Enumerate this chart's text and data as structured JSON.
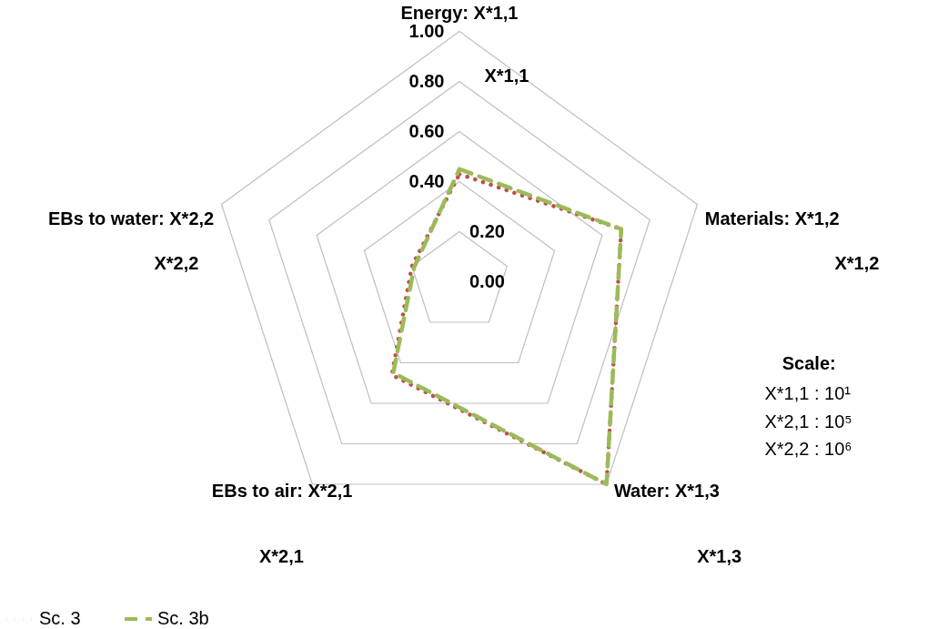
{
  "chart_data": {
    "type": "radar",
    "categories": [
      "Energy: X*1,1",
      "Materials: X*1,2",
      "Water: X*1,3",
      "EBs to air: X*2,1",
      "EBs to water: X*2,2"
    ],
    "series": [
      {
        "name": "Sc. 3",
        "color": "#c0504d",
        "line_style": "dotted",
        "values": [
          0.43,
          0.68,
          1.0,
          0.46,
          0.2
        ]
      },
      {
        "name": "Sc. 3b",
        "color": "#9bbb59",
        "line_style": "dashed",
        "values": [
          0.45,
          0.68,
          1.0,
          0.45,
          0.19
        ]
      }
    ],
    "ylim": [
      0,
      1
    ],
    "yticks": [
      {
        "value": 0,
        "label": "0.00"
      },
      {
        "value": 0.2,
        "label": "0.20"
      },
      {
        "value": 0.4,
        "label": "0.40"
      },
      {
        "value": 0.6,
        "label": "0.60"
      },
      {
        "value": 0.8,
        "label": "0.80"
      },
      {
        "value": 1,
        "label": "1.00"
      }
    ],
    "grid": true,
    "legend": "bottom",
    "marker": "none",
    "annotations": [
      "X*1,1",
      "X*1,2",
      "X*1,3",
      "X*2,1",
      "X*2,2",
      "Scale:",
      "X*1,1 : 10¹",
      "X*2,1 : 10⁵",
      "X*2,2 : 10⁶"
    ]
  }
}
